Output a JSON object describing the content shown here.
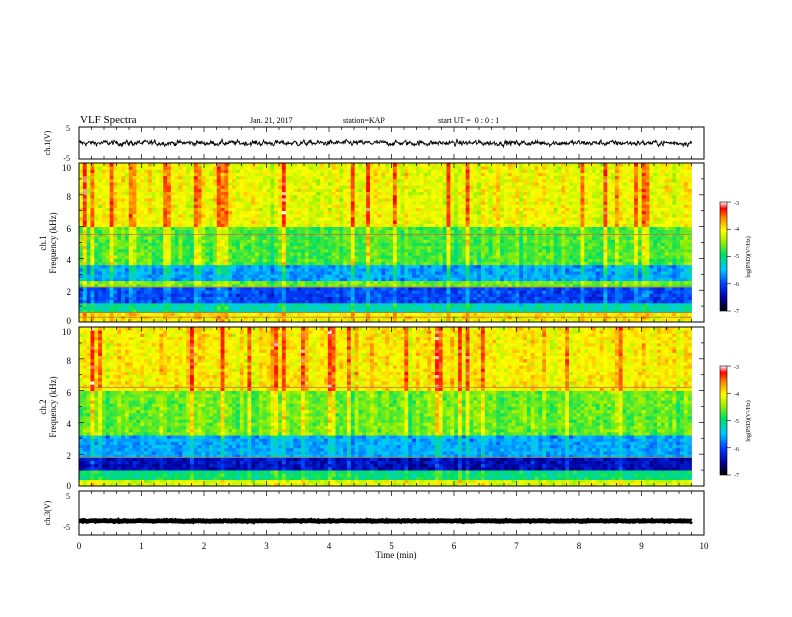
{
  "header": {
    "title": "VLF Spectra",
    "date": "Jan. 21, 2017",
    "station": "station=KAP",
    "start": "start UT =  0 : 0 : 1"
  },
  "chart_data": [
    {
      "type": "line",
      "panel": "ch1-waveform",
      "ylabel": "ch.1(V)",
      "ylim": [
        -5,
        5
      ],
      "yticklabels": [
        "5",
        "-5"
      ],
      "xlim": [
        0,
        10
      ],
      "series": [
        {
          "trace": "noisy waveform",
          "x_range": [
            0,
            9.8
          ],
          "mean": 0,
          "amplitude": 1.2
        }
      ]
    },
    {
      "type": "heatmap",
      "panel": "ch1-spectrogram",
      "ylabel": "ch.1",
      "ylabel2": "Frequency (kHz)",
      "ylim": [
        0,
        10
      ],
      "yticklabels": [
        "0",
        "2",
        "4",
        "6",
        "8",
        "10"
      ],
      "xlim": [
        0,
        10
      ],
      "data_x_range": [
        0,
        9.8
      ],
      "colorbar": {
        "label": "log(PSD)(V²/Hz)",
        "range": [
          -7,
          -3
        ],
        "ticklabels": [
          "-3",
          "-4",
          "-5",
          "-6",
          "-7"
        ]
      },
      "bands": [
        {
          "from_khz": 0.2,
          "to_khz": 0.6,
          "level": -4.0
        },
        {
          "from_khz": 0.6,
          "to_khz": 1.2,
          "level": -5.2
        },
        {
          "from_khz": 1.2,
          "to_khz": 2.2,
          "level": -6.0
        },
        {
          "from_khz": 2.2,
          "to_khz": 2.6,
          "level": -4.6
        },
        {
          "from_khz": 2.6,
          "to_khz": 3.6,
          "level": -5.6
        },
        {
          "from_khz": 3.6,
          "to_khz": 6.0,
          "level": -4.7
        },
        {
          "from_khz": 6.0,
          "to_khz": 10.0,
          "level": -4.1
        }
      ],
      "lines_khz": [
        0.3,
        0.6,
        2.2,
        5.5
      ]
    },
    {
      "type": "heatmap",
      "panel": "ch2-spectrogram",
      "ylabel": "ch.2",
      "ylabel2": "Frequency (kHz)",
      "ylim": [
        0,
        10
      ],
      "yticklabels": [
        "0",
        "2",
        "4",
        "6",
        "8",
        "10"
      ],
      "xlim": [
        0,
        10
      ],
      "data_x_range": [
        0,
        9.8
      ],
      "colorbar": {
        "label": "log(PSD)(V²/Hz)",
        "range": [
          -7,
          -3
        ],
        "ticklabels": [
          "-3",
          "-4",
          "-5",
          "-6",
          "-7"
        ]
      },
      "bands": [
        {
          "from_khz": 0.0,
          "to_khz": 0.4,
          "level": -4.2
        },
        {
          "from_khz": 0.4,
          "to_khz": 1.0,
          "level": -5.0
        },
        {
          "from_khz": 1.0,
          "to_khz": 1.9,
          "level": -6.4
        },
        {
          "from_khz": 1.9,
          "to_khz": 3.2,
          "level": -5.6
        },
        {
          "from_khz": 3.2,
          "to_khz": 6.0,
          "level": -4.6
        },
        {
          "from_khz": 6.0,
          "to_khz": 10.0,
          "level": -4.0
        }
      ],
      "lines_khz": [
        1.8,
        6.2
      ]
    },
    {
      "type": "line",
      "panel": "ch3-waveform",
      "ylabel": "ch.3(V)",
      "ylim": [
        -5,
        5
      ],
      "yticklabels": [
        "5",
        "-5"
      ],
      "xlim": [
        0,
        10
      ],
      "xlabel": "Time (min)",
      "xticklabels": [
        "0",
        "1",
        "2",
        "3",
        "4",
        "5",
        "6",
        "7",
        "8",
        "9",
        "10"
      ],
      "series": [
        {
          "trace": "flat",
          "x_range": [
            0,
            9.8
          ],
          "mean": -1.8,
          "amplitude": 0.15
        }
      ]
    }
  ]
}
